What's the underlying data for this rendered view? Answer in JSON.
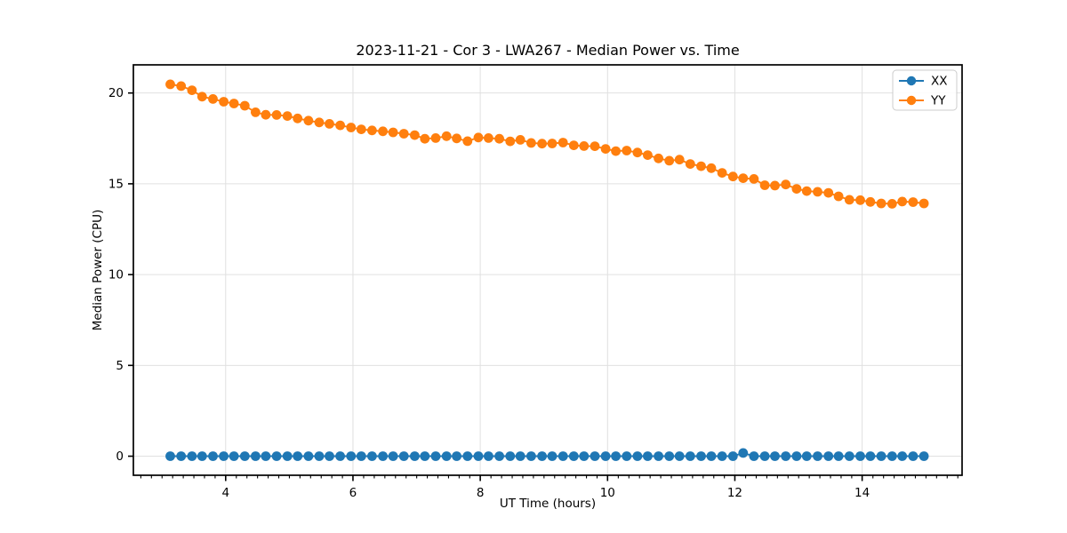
{
  "figure_title": "2023-11-21 - Cor 3 - LWA267 - Median Power vs. Time",
  "chart_data": {
    "type": "line",
    "title": "2023-11-21 - Cor 3 - LWA267 - Median Power vs. Time",
    "xlabel": "UT Time (hours)",
    "ylabel": "Median Power (CPU)",
    "grid": true,
    "legend_position": "upper right",
    "marker": "o",
    "xlim": [
      2.55,
      15.57
    ],
    "ylim": [
      -1.05,
      21.55
    ],
    "xticks": [
      4,
      6,
      8,
      10,
      12,
      14
    ],
    "yticks": [
      0,
      5,
      10,
      15,
      20
    ],
    "x_minor_step": 0.1667,
    "x": [
      3.13,
      3.3,
      3.47,
      3.63,
      3.8,
      3.97,
      4.13,
      4.3,
      4.47,
      4.63,
      4.8,
      4.97,
      5.13,
      5.3,
      5.47,
      5.63,
      5.8,
      5.97,
      6.13,
      6.3,
      6.47,
      6.63,
      6.8,
      6.97,
      7.13,
      7.3,
      7.47,
      7.63,
      7.8,
      7.97,
      8.13,
      8.3,
      8.47,
      8.63,
      8.8,
      8.97,
      9.13,
      9.3,
      9.47,
      9.63,
      9.8,
      9.97,
      10.13,
      10.3,
      10.47,
      10.63,
      10.8,
      10.97,
      11.13,
      11.3,
      11.47,
      11.63,
      11.8,
      11.97,
      12.13,
      12.3,
      12.47,
      12.63,
      12.8,
      12.97,
      13.13,
      13.3,
      13.47,
      13.63,
      13.8,
      13.97,
      14.13,
      14.3,
      14.47,
      14.63,
      14.8,
      14.97
    ],
    "series": [
      {
        "name": "XX",
        "color": "#1f77b4",
        "values": [
          0.0,
          0.0,
          0.0,
          0.0,
          0.0,
          0.0,
          0.0,
          0.0,
          0.0,
          0.0,
          0.0,
          0.0,
          0.0,
          0.0,
          0.0,
          0.0,
          0.0,
          0.0,
          0.0,
          0.0,
          0.0,
          0.0,
          0.0,
          0.0,
          0.0,
          0.0,
          0.0,
          0.0,
          0.0,
          0.0,
          0.0,
          0.0,
          0.0,
          0.0,
          0.0,
          0.0,
          0.0,
          0.0,
          0.0,
          0.0,
          0.0,
          0.0,
          0.0,
          0.0,
          0.0,
          0.0,
          0.0,
          0.0,
          0.0,
          0.0,
          0.0,
          0.0,
          0.0,
          0.0,
          0.18,
          0.0,
          0.0,
          0.0,
          0.0,
          0.0,
          0.0,
          0.0,
          0.0,
          0.0,
          0.0,
          0.0,
          0.0,
          0.0,
          0.0,
          0.0,
          0.0,
          0.0
        ]
      },
      {
        "name": "YY",
        "color": "#ff7f0e",
        "values": [
          20.48,
          20.38,
          20.15,
          19.8,
          19.67,
          19.52,
          19.42,
          19.3,
          18.94,
          18.8,
          18.79,
          18.73,
          18.6,
          18.48,
          18.38,
          18.3,
          18.22,
          18.1,
          18.0,
          17.94,
          17.89,
          17.83,
          17.76,
          17.68,
          17.48,
          17.52,
          17.62,
          17.5,
          17.35,
          17.55,
          17.52,
          17.48,
          17.34,
          17.42,
          17.25,
          17.21,
          17.22,
          17.27,
          17.12,
          17.08,
          17.07,
          16.92,
          16.8,
          16.83,
          16.72,
          16.58,
          16.4,
          16.27,
          16.33,
          16.09,
          15.97,
          15.86,
          15.6,
          15.4,
          15.31,
          15.27,
          14.92,
          14.9,
          14.96,
          14.72,
          14.6,
          14.56,
          14.5,
          14.31,
          14.12,
          14.1,
          14.0,
          13.92,
          13.9,
          14.02,
          13.99,
          13.92
        ]
      }
    ],
    "colors": {
      "spine": "#000000",
      "grid": "#e0e0e0",
      "legend_border": "#cccccc",
      "background": "#ffffff"
    }
  }
}
